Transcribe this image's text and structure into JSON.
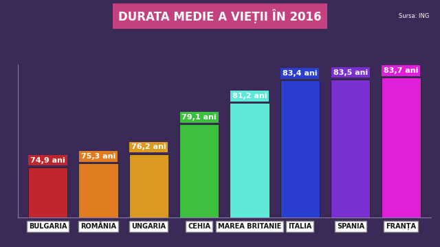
{
  "chart_data": {
    "type": "bar",
    "title": "DURATA MEDIE A VIEȚII ÎN 2016",
    "source": "Sursa: ING",
    "categories": [
      "BULGARIA",
      "ROMÂNIA",
      "UNGARIA",
      "CEHIA",
      "MAREA BRITANIE",
      "ITALIA",
      "SPANIA",
      "FRANȚA"
    ],
    "values": [
      74.9,
      75.3,
      76.2,
      79.1,
      81.2,
      83.4,
      83.5,
      83.7
    ],
    "value_labels": [
      "74,9 ani",
      "75,3 ani",
      "76,2 ani",
      "79,1 ani",
      "81,2 ani",
      "83,4 ani",
      "83,5 ani",
      "83,7 ani"
    ],
    "colors": [
      "#c0272d",
      "#e07b20",
      "#d99a1e",
      "#3cbf3c",
      "#5ee8d8",
      "#2a3fd0",
      "#7a2fd0",
      "#e020d8"
    ],
    "ylim": [
      70,
      85
    ],
    "yticks": [],
    "data_labels": true,
    "tick_labels": "x",
    "grid": false
  }
}
